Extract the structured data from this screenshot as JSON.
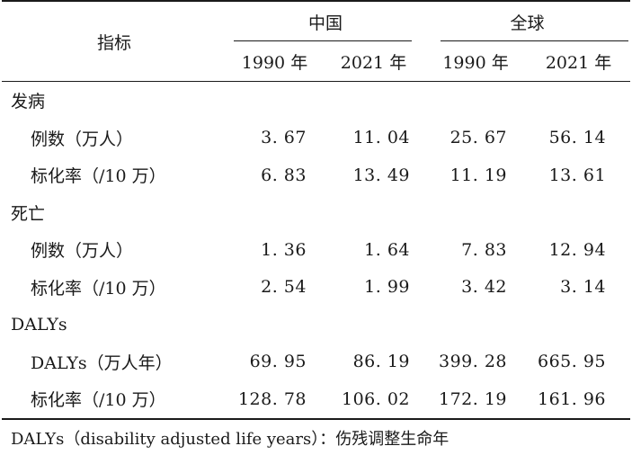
{
  "header": {
    "indicator_label": "指标",
    "groups": [
      {
        "label": "中国"
      },
      {
        "label": "全球"
      }
    ],
    "years": [
      "1990 年",
      "2021 年",
      "1990 年",
      "2021 年"
    ]
  },
  "sections": [
    {
      "title": "发病",
      "rows": [
        {
          "label": "例数（万人）",
          "values": [
            "3. 67",
            "11. 04",
            "25. 67",
            "56. 14"
          ]
        },
        {
          "label": "标化率（/10 万）",
          "values": [
            "6. 83",
            "13. 49",
            "11. 19",
            "13. 61"
          ]
        }
      ]
    },
    {
      "title": "死亡",
      "rows": [
        {
          "label": "例数（万人）",
          "values": [
            "1. 36",
            "1. 64",
            "7. 83",
            "12. 94"
          ]
        },
        {
          "label": "标化率（/10 万）",
          "values": [
            "2. 54",
            "1. 99",
            "3. 42",
            "3. 14"
          ]
        }
      ]
    },
    {
      "title": "DALYs",
      "rows": [
        {
          "label": "DALYs（万人年）",
          "values": [
            "69. 95",
            "86. 19",
            "399. 28",
            "665. 95"
          ]
        },
        {
          "label": "标化率（/10 万）",
          "values": [
            "128. 78",
            "106. 02",
            "172. 19",
            "161. 96"
          ]
        }
      ]
    }
  ],
  "footnote": "DALYs（disability adjusted life years）：伤残调整生命年"
}
